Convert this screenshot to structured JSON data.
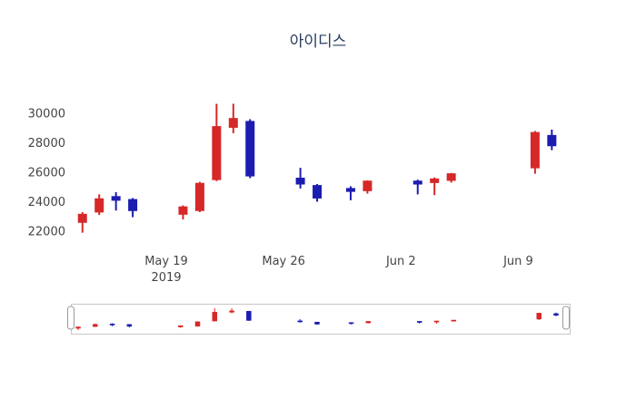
{
  "title": "아이디스",
  "chart_data": {
    "type": "candlestick",
    "title": "아이디스",
    "legend": "none",
    "grid": false,
    "rangeslider": true,
    "increasing_color": "#d62828",
    "decreasing_color": "#1c1cb0",
    "ylim": [
      21000,
      31500
    ],
    "y_ticks": [
      "22000",
      "24000",
      "26000",
      "28000",
      "30000"
    ],
    "y_tick_values": [
      22000,
      24000,
      26000,
      28000,
      30000
    ],
    "x_ticks": [
      {
        "date": "2019-05-19",
        "lines": [
          "May 19",
          "2019"
        ]
      },
      {
        "date": "2019-05-26",
        "lines": [
          "May 26"
        ]
      },
      {
        "date": "2019-06-02",
        "lines": [
          "Jun 2"
        ]
      },
      {
        "date": "2019-06-09",
        "lines": [
          "Jun 9"
        ]
      }
    ],
    "x": [
      "2019-05-14",
      "2019-05-15",
      "2019-05-16",
      "2019-05-17",
      "2019-05-20",
      "2019-05-21",
      "2019-05-22",
      "2019-05-23",
      "2019-05-24",
      "2019-05-27",
      "2019-05-28",
      "2019-05-30",
      "2019-05-31",
      "2019-06-03",
      "2019-06-04",
      "2019-06-05",
      "2019-06-10",
      "2019-06-11"
    ],
    "open": [
      22600,
      23300,
      24350,
      24150,
      23150,
      23400,
      25500,
      29050,
      29450,
      25600,
      25100,
      24900,
      24750,
      25400,
      25300,
      25450,
      26300,
      28500
    ],
    "high": [
      23300,
      24500,
      24650,
      24250,
      23750,
      25350,
      30650,
      30650,
      29600,
      26300,
      25200,
      25050,
      25450,
      25500,
      25650,
      25950,
      28800,
      28900
    ],
    "low": [
      21900,
      23100,
      23400,
      22950,
      22800,
      23300,
      25400,
      28650,
      25600,
      24900,
      24000,
      24100,
      24550,
      24500,
      24450,
      25300,
      25900,
      27500
    ],
    "close": [
      23150,
      24200,
      24100,
      23400,
      23650,
      25250,
      29100,
      29650,
      25750,
      25200,
      24250,
      24700,
      25400,
      25200,
      25550,
      25900,
      28700,
      27800
    ]
  }
}
